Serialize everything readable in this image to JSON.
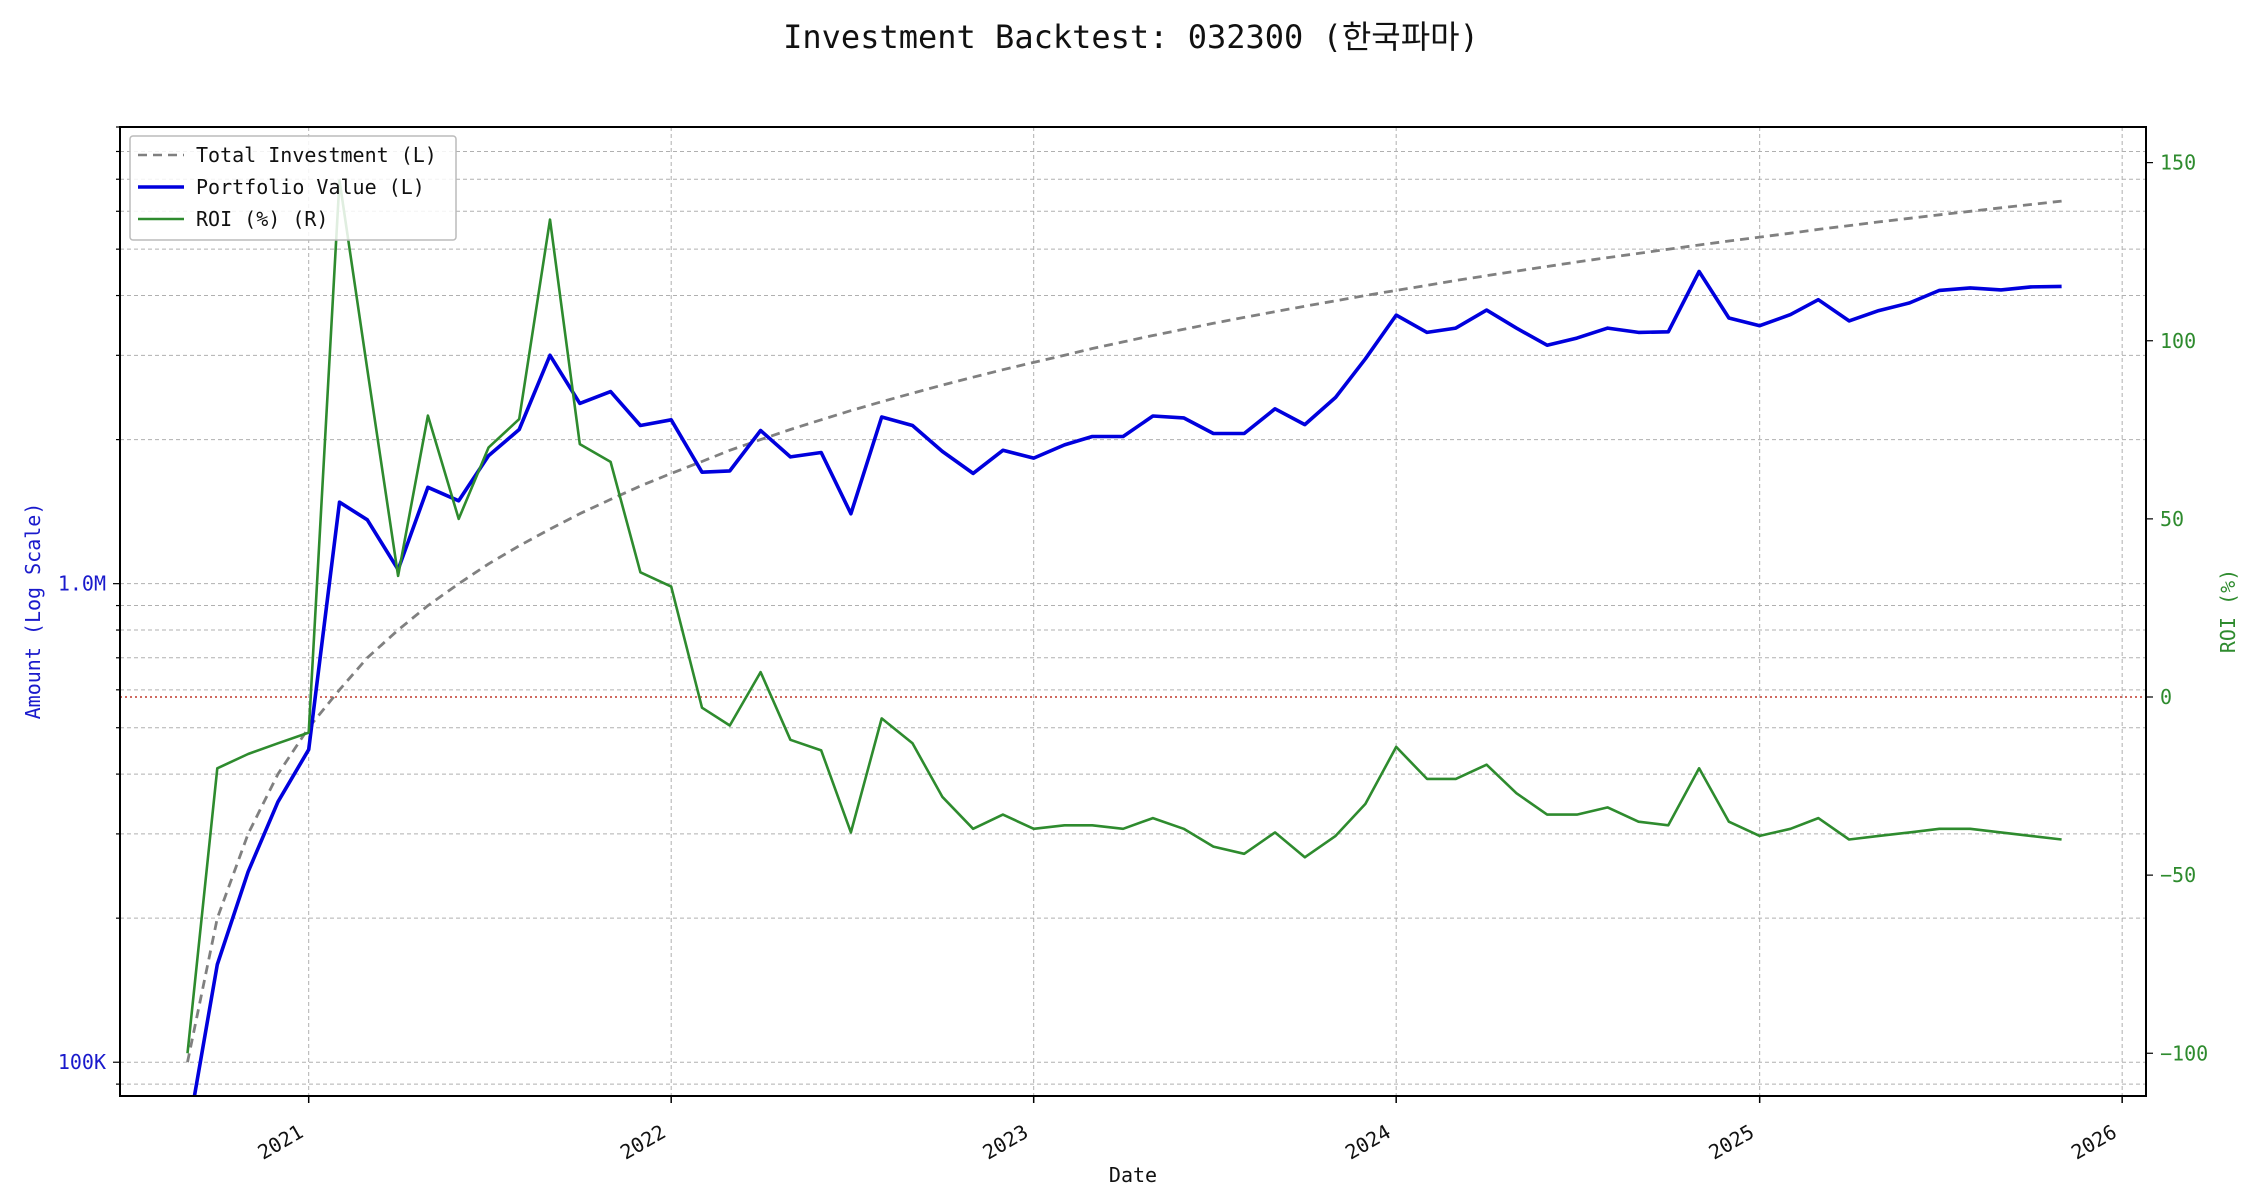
{
  "chart_data": {
    "type": "line",
    "title": "Investment Backtest: 032300 (한국파마)",
    "xlabel": "Date",
    "ylabel_left": "Amount (Log Scale)",
    "ylabel_right": "ROI (%)",
    "left_scale": "log",
    "ylim_left": [
      85000,
      9000000
    ],
    "ylim_right": [
      -112,
      160
    ],
    "xlim": [
      "2020-06-25",
      "2026-01-25"
    ],
    "grid": true,
    "legend_position": "top-left",
    "x_ticks": [
      "2021",
      "2022",
      "2023",
      "2024",
      "2025",
      "2026"
    ],
    "left_ticks": [
      {
        "value": 100000,
        "label": "100K"
      },
      {
        "value": 1000000,
        "label": "1.0M"
      }
    ],
    "right_ticks": [
      {
        "value": -100,
        "label": "−100"
      },
      {
        "value": -50,
        "label": "−50"
      },
      {
        "value": 0,
        "label": "0"
      },
      {
        "value": 50,
        "label": "50"
      },
      {
        "value": 100,
        "label": "100"
      },
      {
        "value": 150,
        "label": "150"
      }
    ],
    "reference_line": {
      "axis": "right",
      "value": 0,
      "color": "#c0392b"
    },
    "dates": [
      "2020-09-01",
      "2020-10-01",
      "2020-11-01",
      "2020-12-01",
      "2021-01-01",
      "2021-02-01",
      "2021-03-01",
      "2021-04-01",
      "2021-05-01",
      "2021-06-01",
      "2021-07-01",
      "2021-08-01",
      "2021-09-01",
      "2021-10-01",
      "2021-11-01",
      "2021-12-01",
      "2022-01-01",
      "2022-02-01",
      "2022-03-01",
      "2022-04-01",
      "2022-05-01",
      "2022-06-01",
      "2022-07-01",
      "2022-08-01",
      "2022-09-01",
      "2022-10-01",
      "2022-11-01",
      "2022-12-01",
      "2023-01-01",
      "2023-02-01",
      "2023-03-01",
      "2023-04-01",
      "2023-05-01",
      "2023-06-01",
      "2023-07-01",
      "2023-08-01",
      "2023-09-01",
      "2023-10-01",
      "2023-11-01",
      "2023-12-01",
      "2024-01-01",
      "2024-02-01",
      "2024-03-01",
      "2024-04-01",
      "2024-05-01",
      "2024-06-01",
      "2024-07-01",
      "2024-08-01",
      "2024-09-01",
      "2024-10-01",
      "2024-11-01",
      "2024-12-01",
      "2025-01-01",
      "2025-02-01",
      "2025-03-01",
      "2025-04-01",
      "2025-05-01",
      "2025-06-01",
      "2025-07-01",
      "2025-08-01",
      "2025-09-01",
      "2025-10-01",
      "2025-11-01"
    ],
    "series": [
      {
        "name": "Total Investment (L)",
        "axis": "left",
        "color": "#808080",
        "style": "dashed",
        "values": [
          100000,
          200000,
          300000,
          400000,
          500000,
          600000,
          700000,
          800000,
          900000,
          1000000,
          1100000,
          1200000,
          1300000,
          1400000,
          1500000,
          1600000,
          1700000,
          1800000,
          1900000,
          2000000,
          2100000,
          2200000,
          2300000,
          2400000,
          2500000,
          2600000,
          2700000,
          2800000,
          2900000,
          3000000,
          3100000,
          3200000,
          3300000,
          3400000,
          3500000,
          3600000,
          3700000,
          3800000,
          3900000,
          4000000,
          4100000,
          4200000,
          4300000,
          4400000,
          4500000,
          4600000,
          4700000,
          4800000,
          4900000,
          5000000,
          5100000,
          5200000,
          5300000,
          5400000,
          5500000,
          5600000,
          5700000,
          5800000,
          5900000,
          6000000,
          6100000,
          6200000,
          6300000
        ]
      },
      {
        "name": "Portfolio Value (L)",
        "axis": "left",
        "color": "#0000dd",
        "style": "solid",
        "values": [
          0,
          160000,
          250000,
          350000,
          450000,
          1480000,
          1360000,
          1070000,
          1590000,
          1490000,
          1850000,
          2100000,
          3000000,
          2380000,
          2520000,
          2140000,
          2200000,
          1710000,
          1720000,
          2090000,
          1840000,
          1880000,
          1400000,
          2230000,
          2140000,
          1890000,
          1700000,
          1900000,
          1830000,
          1950000,
          2030000,
          2030000,
          2240000,
          2220000,
          2060000,
          2060000,
          2320000,
          2150000,
          2450000,
          2950000,
          3640000,
          3350000,
          3420000,
          3730000,
          3420000,
          3150000,
          3260000,
          3420000,
          3350000,
          3360000,
          4490000,
          3590000,
          3460000,
          3650000,
          3920000,
          3540000,
          3720000,
          3860000,
          4100000,
          4150000,
          4110000,
          4170000,
          4180000
        ]
      },
      {
        "name": "ROI (%) (R)",
        "axis": "right",
        "color": "#2e8b2e",
        "style": "solid",
        "values": [
          -100,
          -20,
          -16,
          -13,
          -10,
          145,
          92,
          34,
          79,
          50,
          70,
          78,
          134,
          71,
          66,
          35,
          31,
          -3,
          -8,
          7,
          -12,
          -15,
          -38,
          -6,
          -13,
          -28,
          -37,
          -33,
          -37,
          -36,
          -36,
          -37,
          -34,
          -37,
          -42,
          -44,
          -38,
          -45,
          -39,
          -30,
          -14,
          -23,
          -23,
          -19,
          -27,
          -33,
          -33,
          -31,
          -35,
          -36,
          -20,
          -35,
          -39,
          -37,
          -34,
          -40,
          -39,
          -38,
          -37,
          -37,
          -38,
          -39,
          -40
        ]
      }
    ]
  }
}
